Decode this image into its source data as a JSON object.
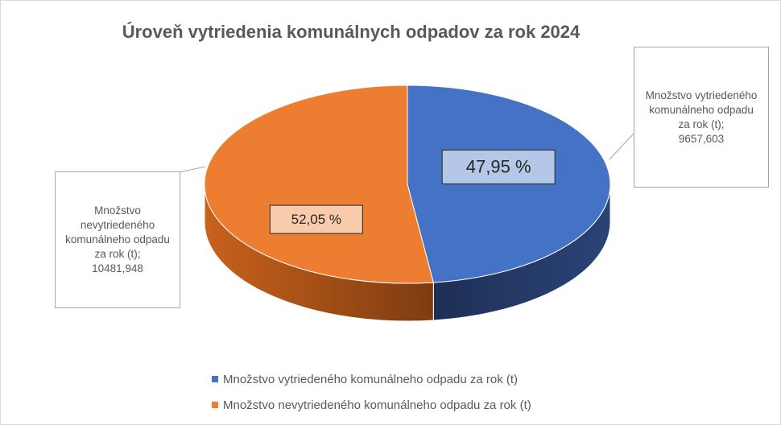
{
  "chart_data": {
    "type": "pie",
    "title": "Úroveň vytriedenia komunálnych odpadov za rok 2024",
    "categories": [
      "Množstvo vytriedeného komunálneho odpadu za rok (t)",
      "Množstvo nevytriedeného komunálneho odpadu za rok (t)"
    ],
    "values": [
      9657.603,
      10481.948
    ],
    "value_labels": [
      "9657,603",
      "10481,948"
    ],
    "percent_values": [
      47.95,
      52.05
    ],
    "percent_labels": [
      "47,95 %",
      "52,05 %"
    ],
    "callout_separator": ";",
    "colors": [
      "#4472c4",
      "#ed7d31"
    ],
    "legend": "bottom"
  }
}
